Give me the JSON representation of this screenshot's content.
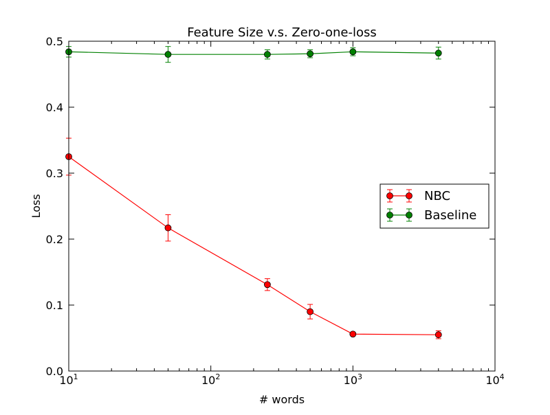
{
  "chart_data": {
    "type": "line",
    "title": "Feature Size v.s. Zero-one-loss",
    "xlabel": "# words",
    "ylabel": "Loss",
    "x_scale": "log",
    "xlim": [
      10,
      10000
    ],
    "ylim": [
      0.0,
      0.5
    ],
    "x_ticks": [
      {
        "value": 10,
        "base": "10",
        "exp": "1"
      },
      {
        "value": 100,
        "base": "10",
        "exp": "2"
      },
      {
        "value": 1000,
        "base": "10",
        "exp": "3"
      },
      {
        "value": 10000,
        "base": "10",
        "exp": "4"
      }
    ],
    "y_ticks": [
      {
        "value": 0.0,
        "label": "0.0"
      },
      {
        "value": 0.1,
        "label": "0.1"
      },
      {
        "value": 0.2,
        "label": "0.2"
      },
      {
        "value": 0.3,
        "label": "0.3"
      },
      {
        "value": 0.4,
        "label": "0.4"
      },
      {
        "value": 0.5,
        "label": "0.5"
      }
    ],
    "grid": false,
    "legend_position": "right",
    "series": [
      {
        "name": "NBC",
        "color": "#ff0000",
        "marker_color": "#ff0000",
        "x": [
          10,
          50,
          250,
          500,
          1000,
          4000
        ],
        "y": [
          0.325,
          0.217,
          0.131,
          0.09,
          0.056,
          0.055
        ],
        "err": [
          0.028,
          0.02,
          0.009,
          0.011,
          0.002,
          0.006
        ]
      },
      {
        "name": "Baseline",
        "color": "#008000",
        "marker_color": "#008000",
        "x": [
          10,
          50,
          250,
          500,
          1000,
          4000
        ],
        "y": [
          0.484,
          0.48,
          0.48,
          0.481,
          0.484,
          0.482
        ],
        "err": [
          0.008,
          0.012,
          0.007,
          0.006,
          0.006,
          0.009
        ]
      }
    ]
  }
}
